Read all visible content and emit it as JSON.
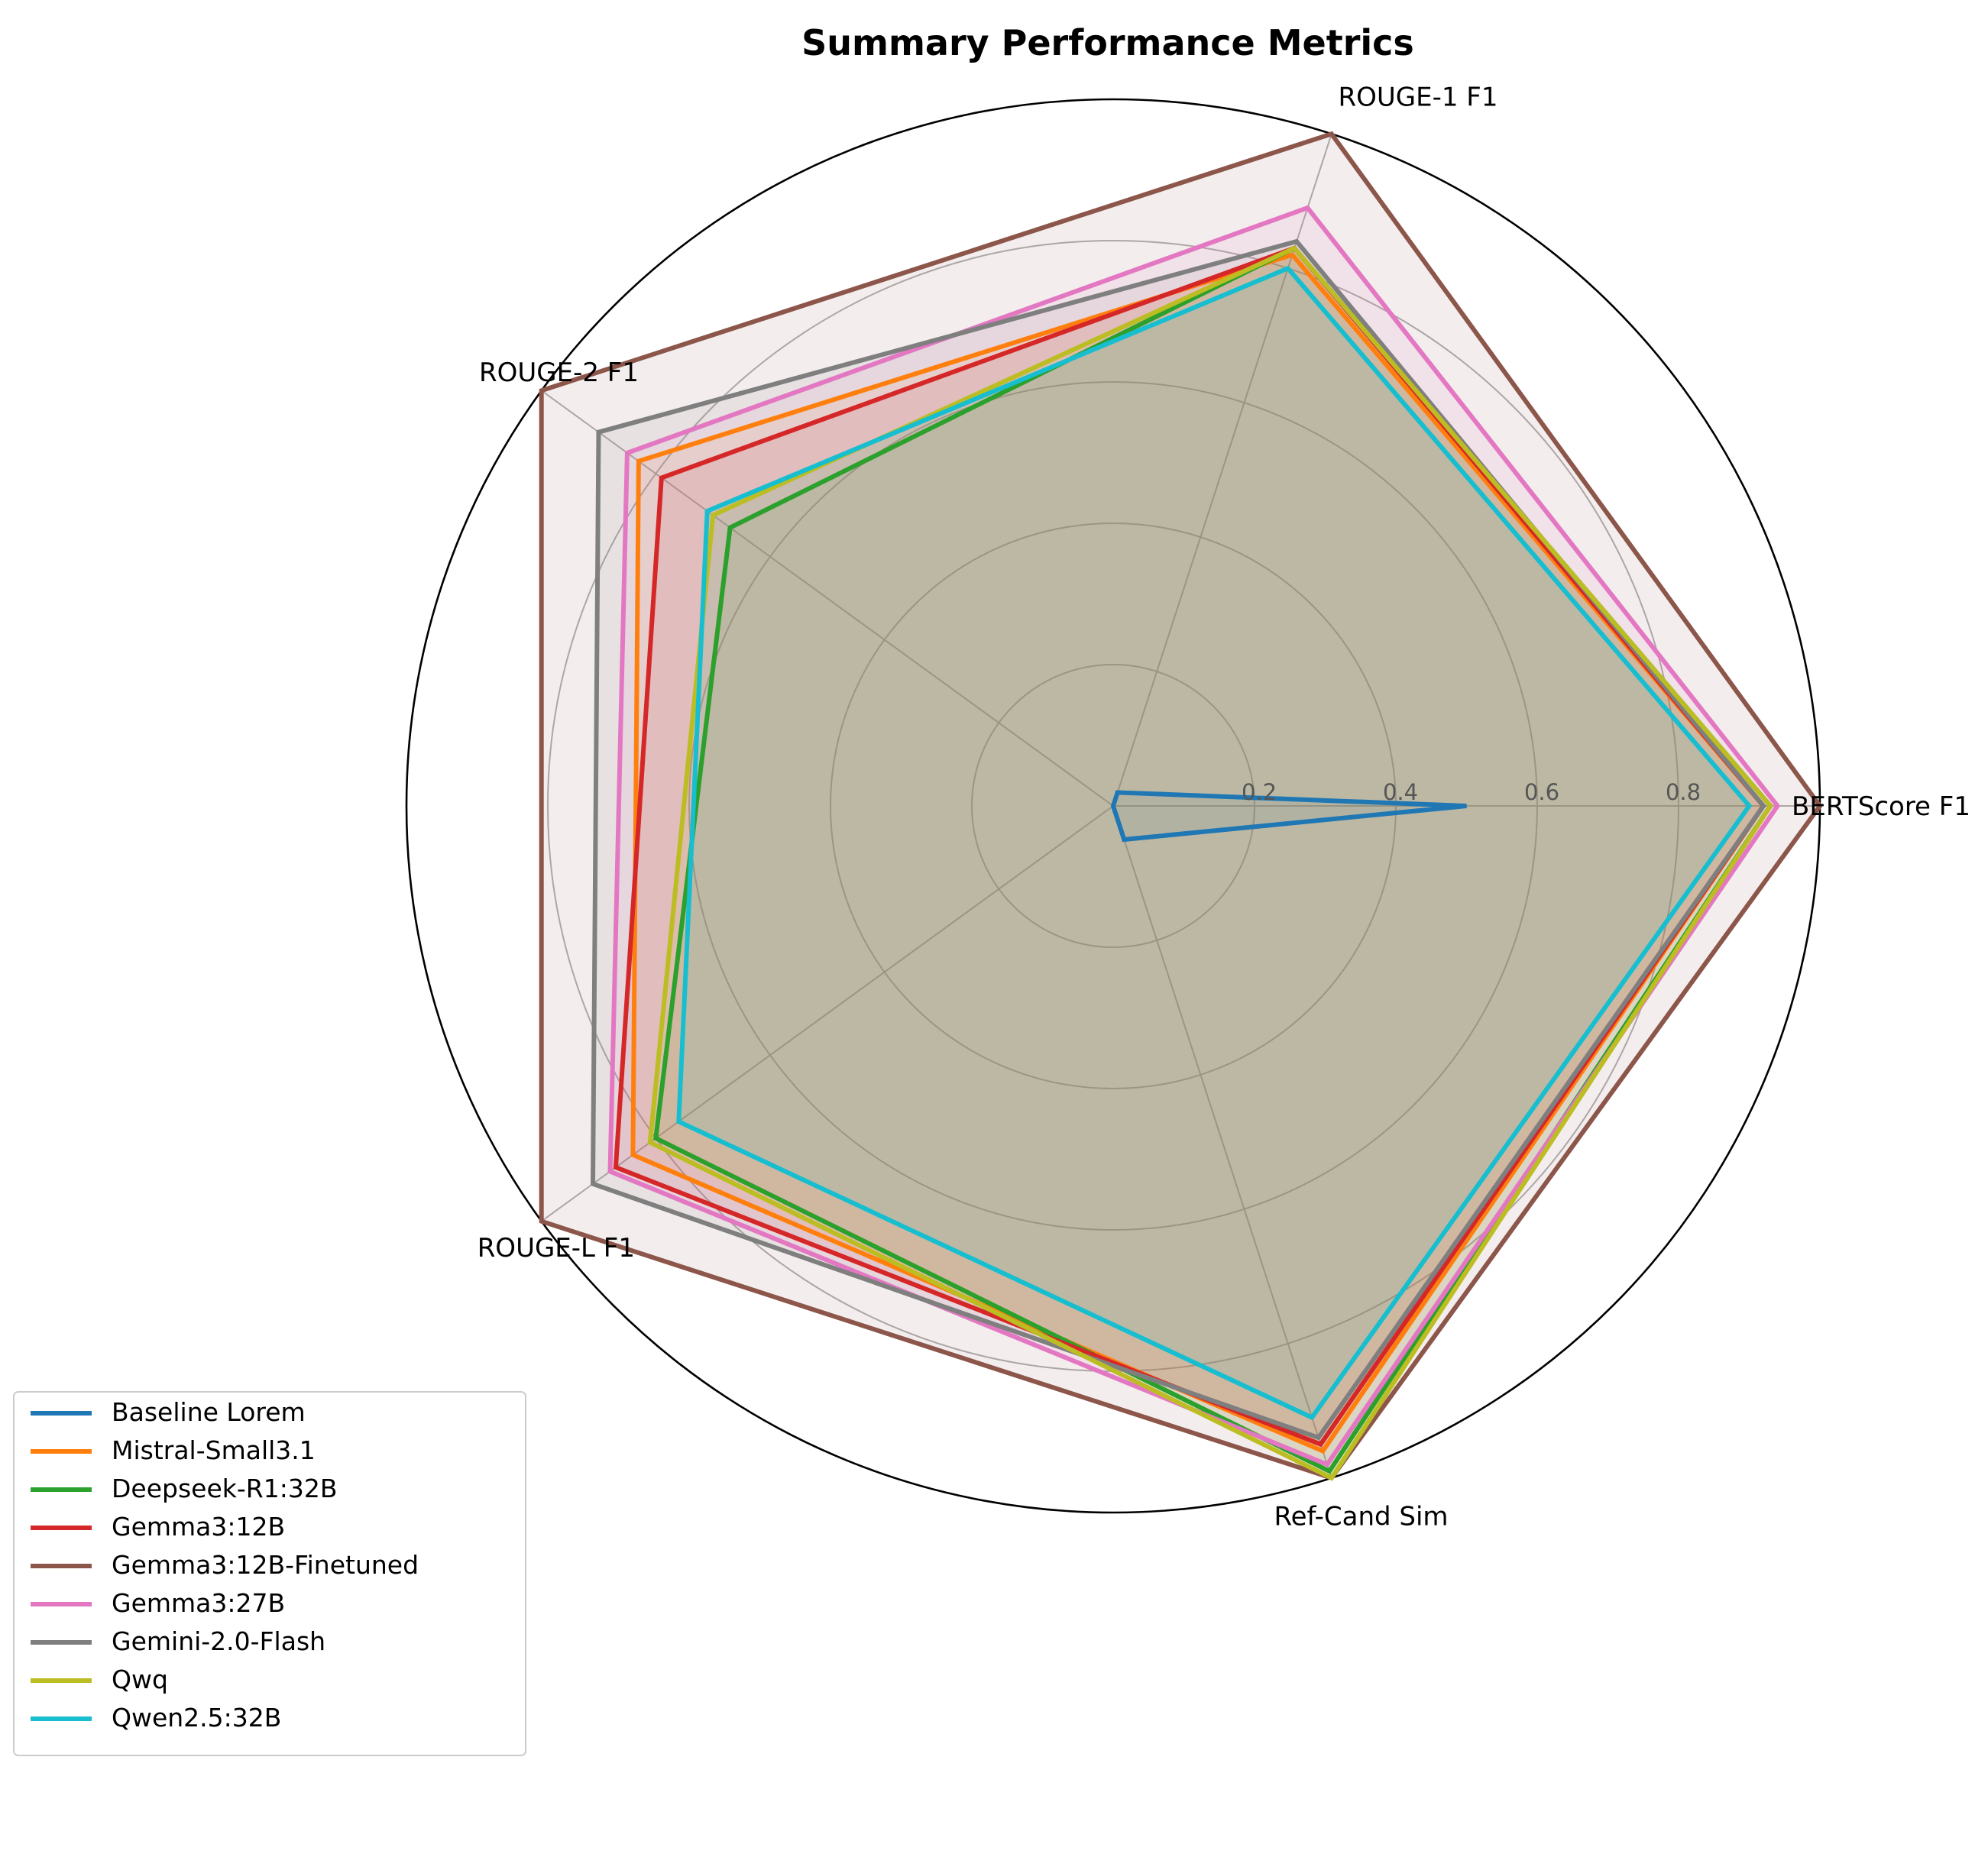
{
  "chart_data": {
    "type": "radar",
    "title": "Summary Performance Metrics",
    "axes": [
      "BERTScore F1",
      "ROUGE-1 F1",
      "ROUGE-2 F1",
      "ROUGE-L F1",
      "Ref-Cand Sim"
    ],
    "rlim": [
      0,
      1
    ],
    "rticks": [
      0.2,
      0.4,
      0.6,
      0.8
    ],
    "rtick_labels": [
      "0.2",
      "0.4",
      "0.6",
      "0.8"
    ],
    "grid": true,
    "legend_position": "lower-left",
    "series": [
      {
        "name": "Baseline Lorem",
        "color": "#1f77b4",
        "values": [
          0.5,
          0.02,
          0.0,
          0.0,
          0.05
        ]
      },
      {
        "name": "Mistral-Small3.1",
        "color": "#ff7f0e",
        "values": [
          0.92,
          0.82,
          0.83,
          0.84,
          0.96
        ]
      },
      {
        "name": "Deepseek-R1:32B",
        "color": "#2ca02c",
        "values": [
          0.93,
          0.83,
          0.67,
          0.8,
          0.99
        ]
      },
      {
        "name": "Gemma3:12B",
        "color": "#d62728",
        "values": [
          0.92,
          0.83,
          0.79,
          0.87,
          0.95
        ]
      },
      {
        "name": "Gemma3:12B-Finetuned",
        "color": "#8c564b",
        "values": [
          1.0,
          1.0,
          1.0,
          1.0,
          1.0
        ]
      },
      {
        "name": "Gemma3:27B",
        "color": "#e377c2",
        "values": [
          0.94,
          0.89,
          0.85,
          0.88,
          0.98
        ]
      },
      {
        "name": "Gemini-2.0-Flash",
        "color": "#7f7f7f",
        "values": [
          0.92,
          0.84,
          0.9,
          0.91,
          0.94
        ]
      },
      {
        "name": "Qwq",
        "color": "#bcbd22",
        "values": [
          0.93,
          0.83,
          0.7,
          0.81,
          1.0
        ]
      },
      {
        "name": "Qwen2.5:32B",
        "color": "#17becf",
        "values": [
          0.9,
          0.8,
          0.71,
          0.76,
          0.91
        ]
      }
    ]
  }
}
